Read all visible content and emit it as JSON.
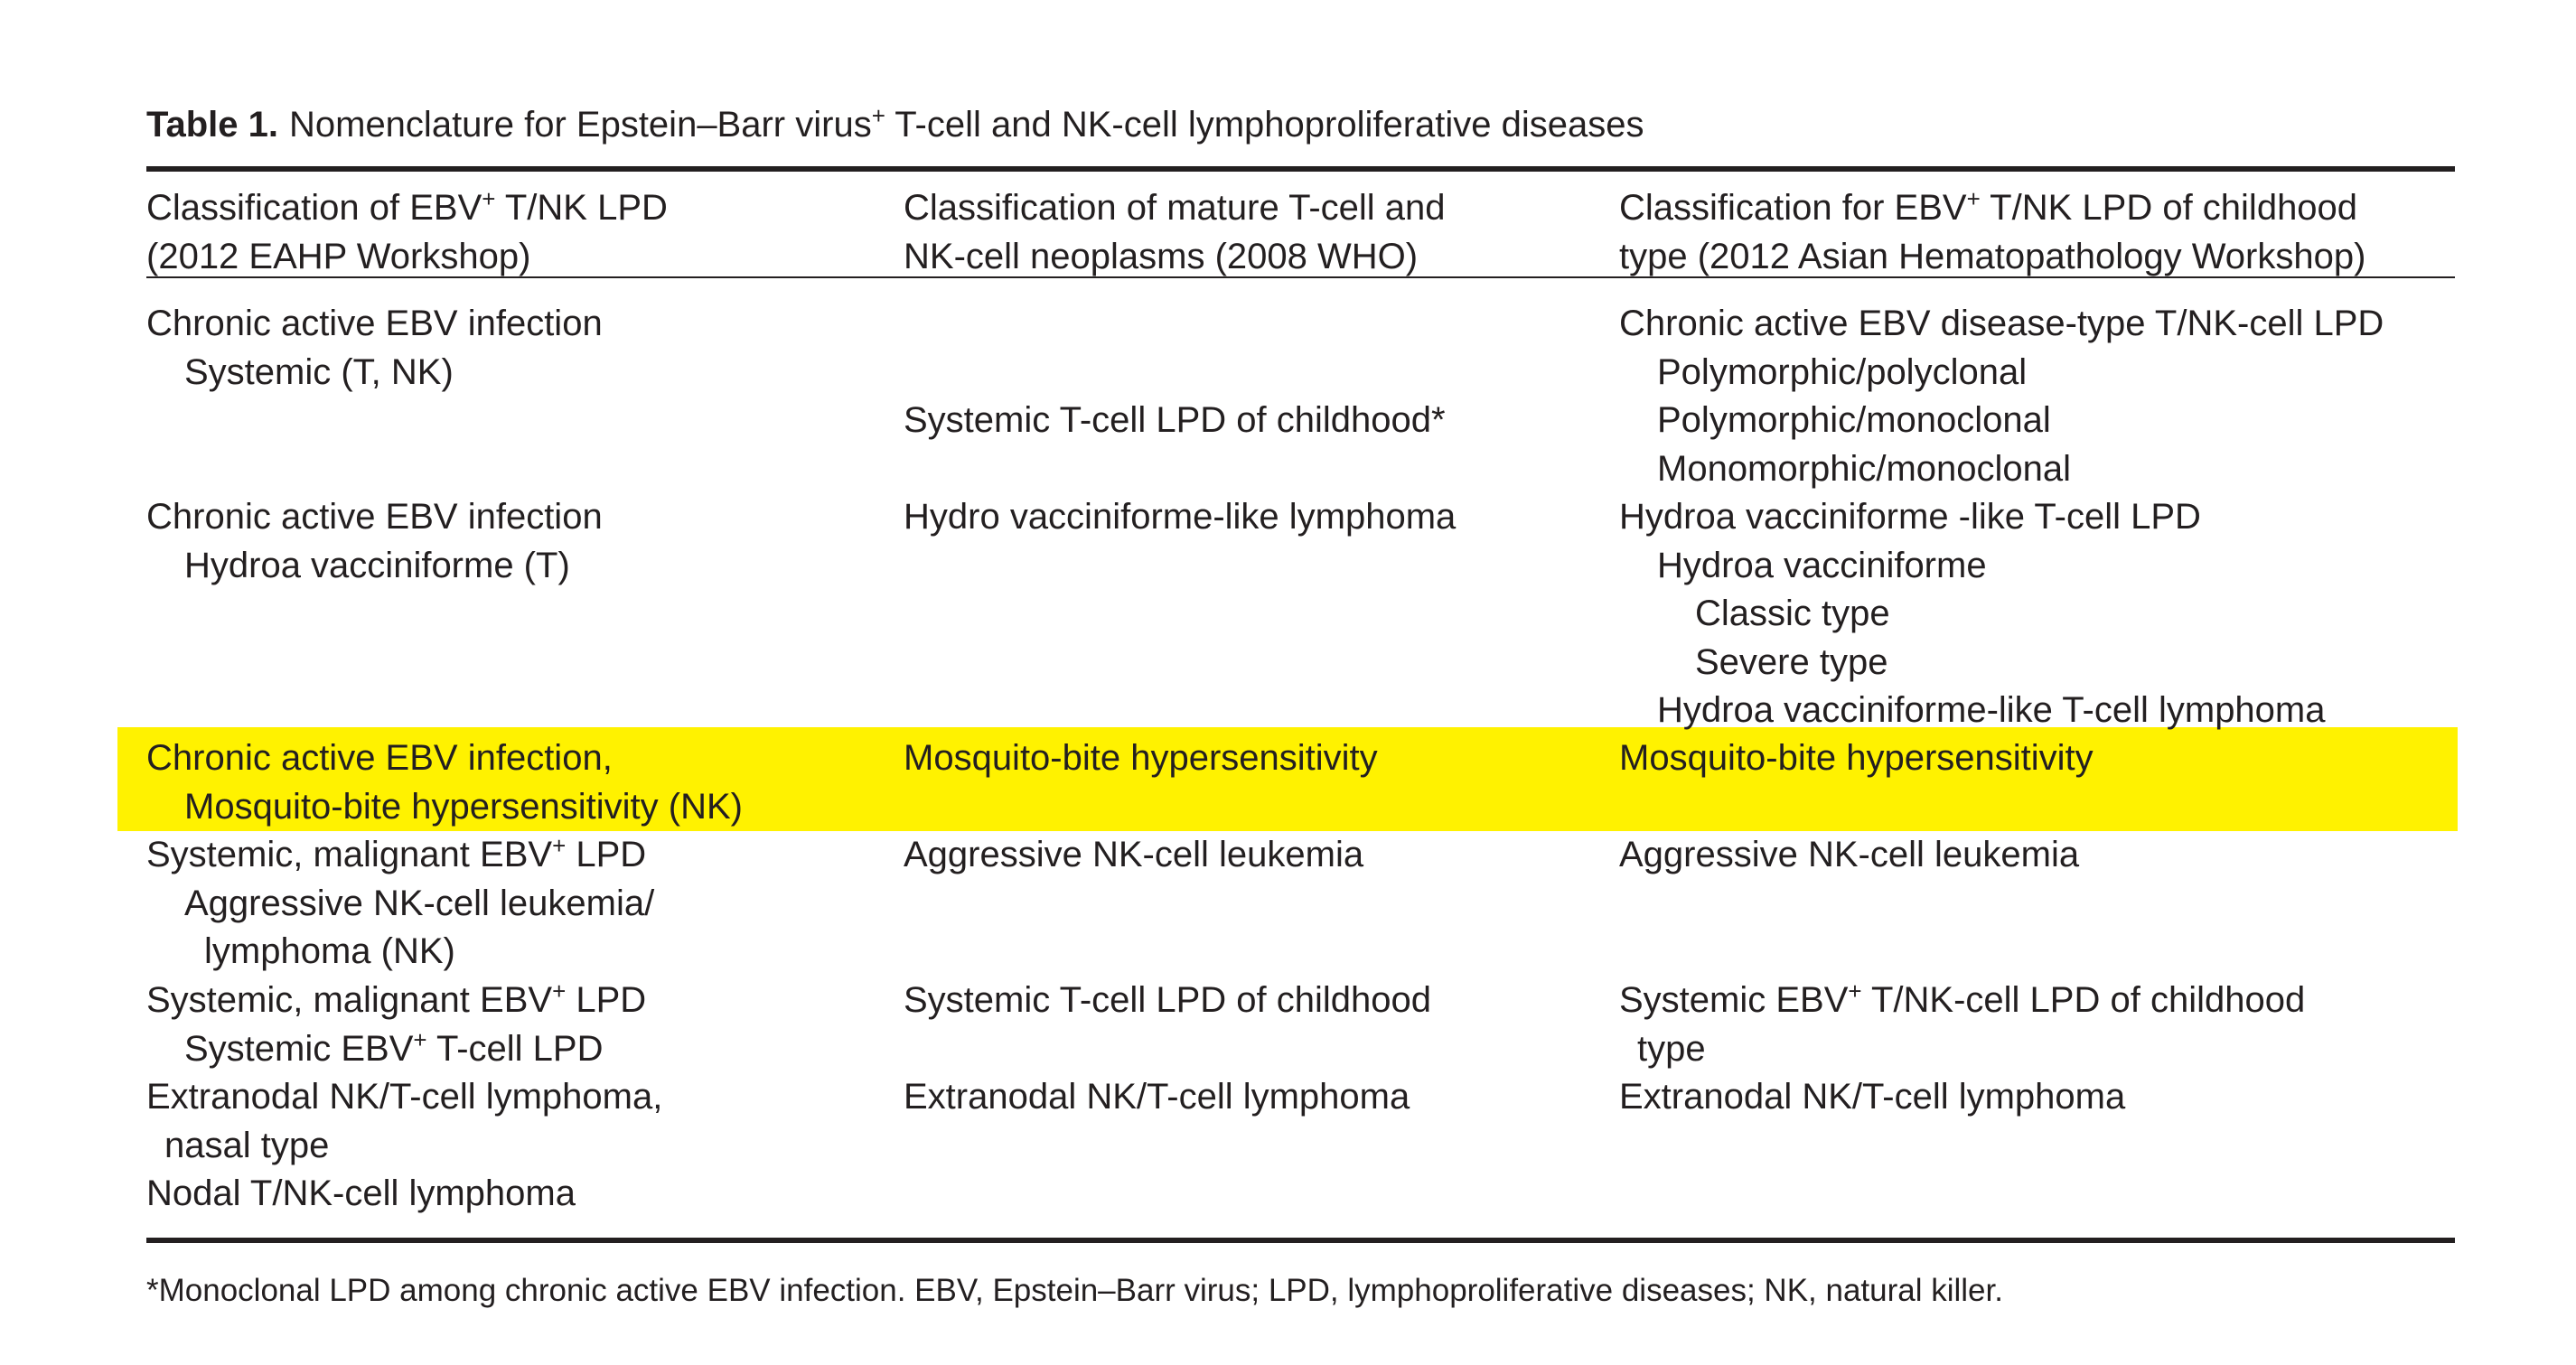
{
  "caption": {
    "label": "Table 1.",
    "text_before_sup": "Nomenclature for Epstein–Barr virus",
    "sup": "+",
    "text_after_sup": " T-cell and NK-cell lymphoproliferative diseases"
  },
  "headers": {
    "col1": {
      "line1_pre": "Classification of EBV",
      "line1_sup": "+",
      "line1_post": " T/NK LPD",
      "line2": "(2012 EAHP Workshop)"
    },
    "col2": {
      "line1": "Classification of mature T-cell and",
      "line2": "NK-cell neoplasms (2008 WHO)"
    },
    "col3": {
      "line1_pre": "Classification for EBV",
      "line1_sup": "+",
      "line1_post": " T/NK LPD of childhood",
      "line2": "type (2012 Asian Hematopathology Workshop)"
    }
  },
  "rows": {
    "r1": {
      "c1_l1": "Chronic active EBV infection",
      "c1_l2": "Systemic (T, NK)",
      "c2_l3": "Systemic T-cell LPD of childhood*",
      "c3_l1": "Chronic active EBV disease-type T/NK-cell LPD",
      "c3_l2": "Polymorphic/polyclonal",
      "c3_l3": "Polymorphic/monoclonal",
      "c3_l4": "Monomorphic/monoclonal"
    },
    "r2": {
      "c1_l1": "Chronic active EBV infection",
      "c1_l2": "Hydroa vacciniforme (T)",
      "c2_l1": "Hydro vacciniforme-like lymphoma",
      "c3_l1": "Hydroa vacciniforme -like T-cell LPD",
      "c3_l2": "Hydroa vacciniforme",
      "c3_l3": "Classic type",
      "c3_l4": "Severe type",
      "c3_l5": "Hydroa vacciniforme-like T-cell lymphoma"
    },
    "r3": {
      "c1_l1": "Chronic active EBV infection,",
      "c1_l2": "Mosquito-bite hypersensitivity (NK)",
      "c2_l1": "Mosquito-bite hypersensitivity",
      "c3_l1": "Mosquito-bite hypersensitivity",
      "highlight_color": "#fff200"
    },
    "r4": {
      "c1_l1_pre": "Systemic, malignant EBV",
      "c1_l1_sup": "+",
      "c1_l1_post": " LPD",
      "c1_l2": "Aggressive NK-cell leukemia/",
      "c1_l3": "lymphoma (NK)",
      "c2_l1": "Aggressive NK-cell leukemia",
      "c3_l1": "Aggressive NK-cell leukemia"
    },
    "r5": {
      "c1_l1_pre": "Systemic, malignant EBV",
      "c1_l1_sup": "+",
      "c1_l1_post": " LPD",
      "c1_l2_pre": "Systemic EBV",
      "c1_l2_sup": "+",
      "c1_l2_post": " T-cell LPD",
      "c2_l1": "Systemic T-cell LPD of childhood",
      "c3_l1_pre": "Systemic EBV",
      "c3_l1_sup": "+",
      "c3_l1_post": " T/NK-cell LPD of childhood",
      "c3_l2": "type"
    },
    "r6": {
      "c1_l1": "Extranodal NK/T-cell lymphoma,",
      "c1_l2": "nasal type",
      "c2_l1": "Extranodal NK/T-cell lymphoma",
      "c3_l1": "Extranodal NK/T-cell lymphoma"
    },
    "r7": {
      "c1_l1": "Nodal T/NK-cell lymphoma"
    }
  },
  "footnote": "*Monoclonal LPD among chronic active EBV infection. EBV, Epstein–Barr virus; LPD, lymphoproliferative diseases; NK, natural killer."
}
